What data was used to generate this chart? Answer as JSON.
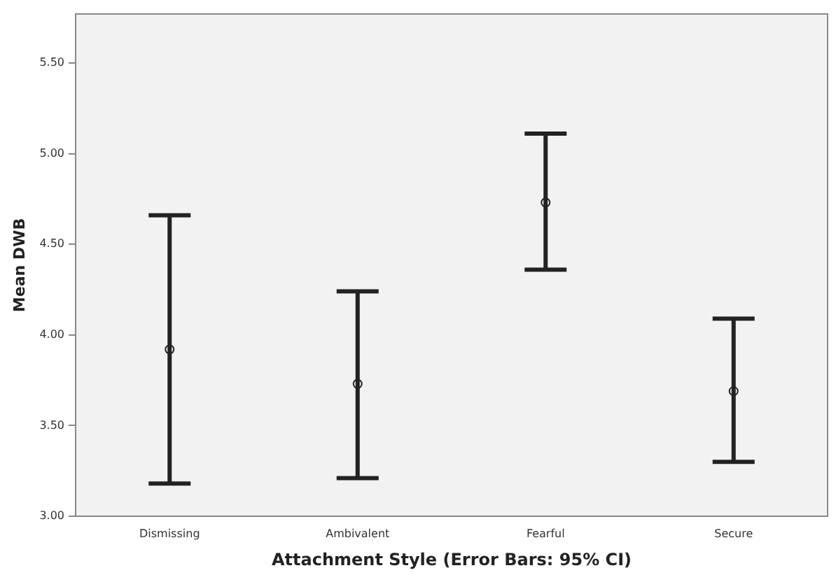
{
  "chart_data": {
    "type": "scatter",
    "xlabel": "Attachment Style (Error Bars: 95% CI)",
    "ylabel": "Mean DWB",
    "categories": [
      "Dismissing",
      "Ambivalent",
      "Fearful",
      "Secure"
    ],
    "values": [
      3.92,
      3.73,
      4.73,
      3.69
    ],
    "errors": [
      [
        3.18,
        4.66
      ],
      [
        3.21,
        4.24
      ],
      [
        4.36,
        5.11
      ],
      [
        3.3,
        4.09
      ]
    ],
    "color": "#222222",
    "marker": "circle",
    "ylim": [
      3.0,
      5.77
    ],
    "yticks": [
      {
        "value": 3.0,
        "label": "3.00"
      },
      {
        "value": 3.5,
        "label": "3.50"
      },
      {
        "value": 4.0,
        "label": "4.00"
      },
      {
        "value": 4.5,
        "label": "4.50"
      },
      {
        "value": 5.0,
        "label": "5.00"
      },
      {
        "value": 5.5,
        "label": "5.50"
      }
    ],
    "grid": false
  }
}
